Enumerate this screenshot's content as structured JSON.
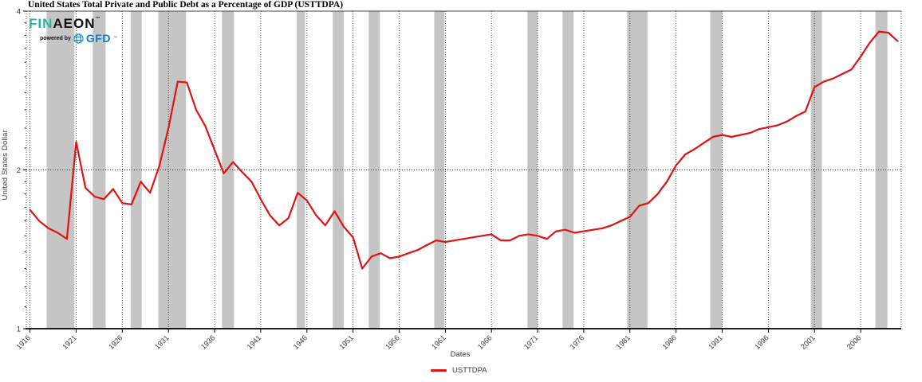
{
  "title": "United States Total Private and Public Debt as a Percentage of GDP (USTTDPA)",
  "logo": {
    "fin": "FIN",
    "aeon": "AEON",
    "tm": "™",
    "powered_by": "powered by",
    "gfd": "GFD",
    "fin_color": "#2bb3a9",
    "aeon_color": "#111111",
    "gfd_color": "#1b78bd"
  },
  "y_axis": {
    "label": "United States Dollar"
  },
  "x_axis": {
    "label": "Dates"
  },
  "legend": {
    "series_label": "USTTDPA"
  },
  "colors": {
    "line": "#e01313",
    "recession_band": "#c5c5c5",
    "grid": "#2a2a2a",
    "axis": "#000000",
    "tick_text": "#3a3a3a",
    "frame": "#444444"
  },
  "chart_data": {
    "type": "line",
    "title": "United States Total Private and Public Debt as a Percentage of GDP (USTTDPA)",
    "xlabel": "Dates",
    "ylabel": "United States Dollar",
    "x_range": [
      1915.6,
      2010.4
    ],
    "y_range": [
      1,
      4
    ],
    "y_scale": "log2",
    "grid": "dotted",
    "legend_position": "bottom-center",
    "x_ticks": [
      1916,
      1921,
      1926,
      1931,
      1936,
      1941,
      1946,
      1951,
      1956,
      1961,
      1966,
      1971,
      1976,
      1981,
      1986,
      1991,
      1996,
      2001,
      2006
    ],
    "y_ticks": [
      1,
      2,
      4
    ],
    "y_minor_ticks": [
      1.1,
      1.2,
      1.3,
      1.4,
      1.5,
      1.6,
      1.7,
      1.8,
      1.9,
      2.2,
      2.4,
      2.6,
      2.8,
      3.0,
      3.2,
      3.4,
      3.6,
      3.8
    ],
    "recession_bands": [
      [
        1917.8,
        1920.8
      ],
      [
        1922.8,
        1924.2
      ],
      [
        1926.9,
        1928.1
      ],
      [
        1929.9,
        1932.9
      ],
      [
        1936.8,
        1938.1
      ],
      [
        1944.9,
        1945.8
      ],
      [
        1948.8,
        1950.0
      ],
      [
        1952.7,
        1953.9
      ],
      [
        1959.8,
        1960.9
      ],
      [
        1969.9,
        1971.0
      ],
      [
        1973.7,
        1974.9
      ],
      [
        1980.7,
        1982.9
      ],
      [
        1989.7,
        1991.0
      ],
      [
        2000.6,
        2001.8
      ],
      [
        2007.6,
        2008.9
      ]
    ],
    "series": [
      {
        "name": "USTTDPA",
        "color": "#e01313",
        "years": [
          1916,
          1917,
          1918,
          1919,
          1920,
          1921,
          1922,
          1923,
          1924,
          1925,
          1926,
          1927,
          1928,
          1929,
          1930,
          1931,
          1932,
          1933,
          1934,
          1935,
          1936,
          1937,
          1938,
          1939,
          1940,
          1941,
          1942,
          1943,
          1944,
          1945,
          1946,
          1947,
          1948,
          1949,
          1950,
          1951,
          1952,
          1953,
          1954,
          1955,
          1956,
          1957,
          1958,
          1959,
          1960,
          1961,
          1962,
          1963,
          1964,
          1965,
          1966,
          1967,
          1968,
          1969,
          1970,
          1971,
          1972,
          1973,
          1974,
          1975,
          1976,
          1977,
          1978,
          1979,
          1980,
          1981,
          1982,
          1983,
          1984,
          1985,
          1986,
          1987,
          1988,
          1989,
          1990,
          1991,
          1992,
          1993,
          1994,
          1995,
          1996,
          1997,
          1998,
          1999,
          2000,
          2001,
          2002,
          2003,
          2004,
          2005,
          2006,
          2007,
          2008,
          2009,
          2010
        ],
        "values": [
          1.68,
          1.6,
          1.55,
          1.52,
          1.48,
          2.26,
          1.85,
          1.78,
          1.76,
          1.84,
          1.73,
          1.72,
          1.9,
          1.81,
          2.03,
          2.4,
          2.94,
          2.93,
          2.6,
          2.42,
          2.18,
          1.97,
          2.07,
          1.98,
          1.9,
          1.76,
          1.64,
          1.57,
          1.62,
          1.81,
          1.75,
          1.64,
          1.57,
          1.67,
          1.56,
          1.49,
          1.3,
          1.37,
          1.39,
          1.36,
          1.37,
          1.39,
          1.41,
          1.44,
          1.47,
          1.46,
          1.47,
          1.48,
          1.49,
          1.5,
          1.51,
          1.47,
          1.47,
          1.5,
          1.51,
          1.5,
          1.48,
          1.53,
          1.54,
          1.52,
          1.53,
          1.54,
          1.55,
          1.57,
          1.6,
          1.63,
          1.71,
          1.73,
          1.8,
          1.9,
          2.04,
          2.14,
          2.19,
          2.25,
          2.31,
          2.33,
          2.31,
          2.33,
          2.35,
          2.39,
          2.41,
          2.43,
          2.47,
          2.53,
          2.58,
          2.87,
          2.94,
          2.98,
          3.04,
          3.1,
          3.28,
          3.49,
          3.66,
          3.64,
          3.51
        ]
      }
    ]
  }
}
